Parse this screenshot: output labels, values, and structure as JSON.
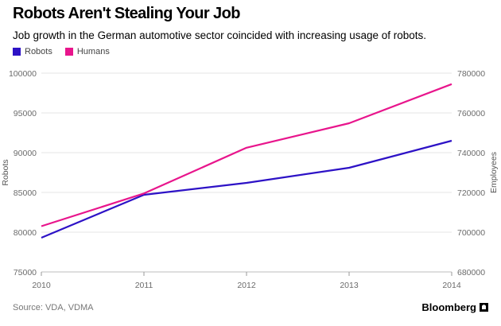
{
  "chart_data": {
    "type": "line",
    "title": "Robots Aren't Stealing Your Job",
    "subtitle": "Job growth in the German automotive sector coincided with increasing usage of robots.",
    "x": [
      "2010",
      "2011",
      "2012",
      "2013",
      "2014"
    ],
    "series": [
      {
        "name": "Robots",
        "axis": "left",
        "color": "#2d12c6",
        "values": [
          79300,
          84700,
          86200,
          88100,
          91500
        ]
      },
      {
        "name": "Humans",
        "axis": "right",
        "color": "#e8158c",
        "values": [
          703000,
          719500,
          742500,
          754800,
          774500
        ]
      }
    ],
    "ylabel_left": "Robots",
    "ylabel_right": "Employees",
    "ylim_left": [
      75000,
      100000
    ],
    "yticks_left": [
      "75000",
      "80000",
      "85000",
      "90000",
      "95000",
      "100000"
    ],
    "ylim_right": [
      680000,
      780000
    ],
    "yticks_right": [
      "680000",
      "700000",
      "720000",
      "740000",
      "760000",
      "780000"
    ],
    "grid": true,
    "legend_position": "top-left",
    "source": "Source: VDA, VDMA",
    "brand": "Bloomberg"
  }
}
